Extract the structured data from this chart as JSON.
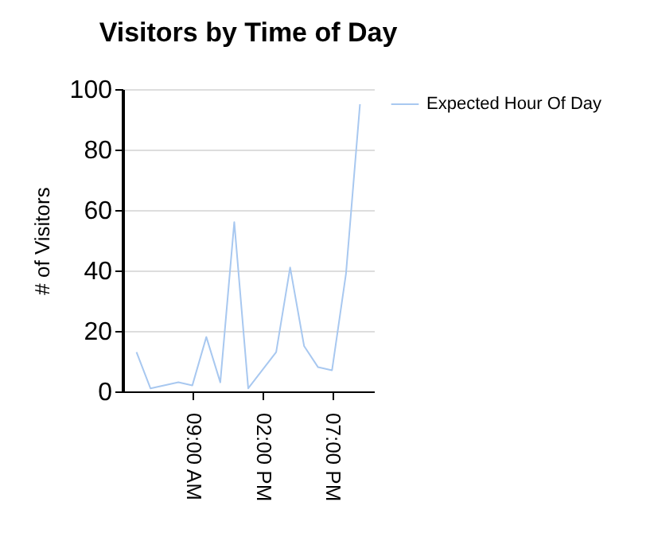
{
  "chart_data": {
    "type": "line",
    "title": "Visitors by Time of Day",
    "ylabel": "# of Visitors",
    "x": [
      5,
      6,
      8,
      9,
      10,
      11,
      12,
      13,
      15,
      16,
      17,
      18,
      19,
      20,
      21
    ],
    "series": [
      {
        "name": "Expected Hour Of Day",
        "color": "#a8c8f0",
        "values": [
          13,
          1,
          3,
          2,
          18,
          3,
          56,
          1,
          13,
          41,
          15,
          8,
          7,
          39,
          95
        ]
      }
    ],
    "xlim": [
      4,
      22
    ],
    "xticks": [
      {
        "value": 9,
        "label": "09:00 AM"
      },
      {
        "value": 14,
        "label": "02:00 PM"
      },
      {
        "value": 19,
        "label": "07:00 PM"
      }
    ],
    "ylim": [
      0,
      100
    ],
    "yticks": [
      0,
      20,
      40,
      60,
      80,
      100
    ],
    "grid": "y",
    "legend": "top right",
    "marker": "none"
  }
}
